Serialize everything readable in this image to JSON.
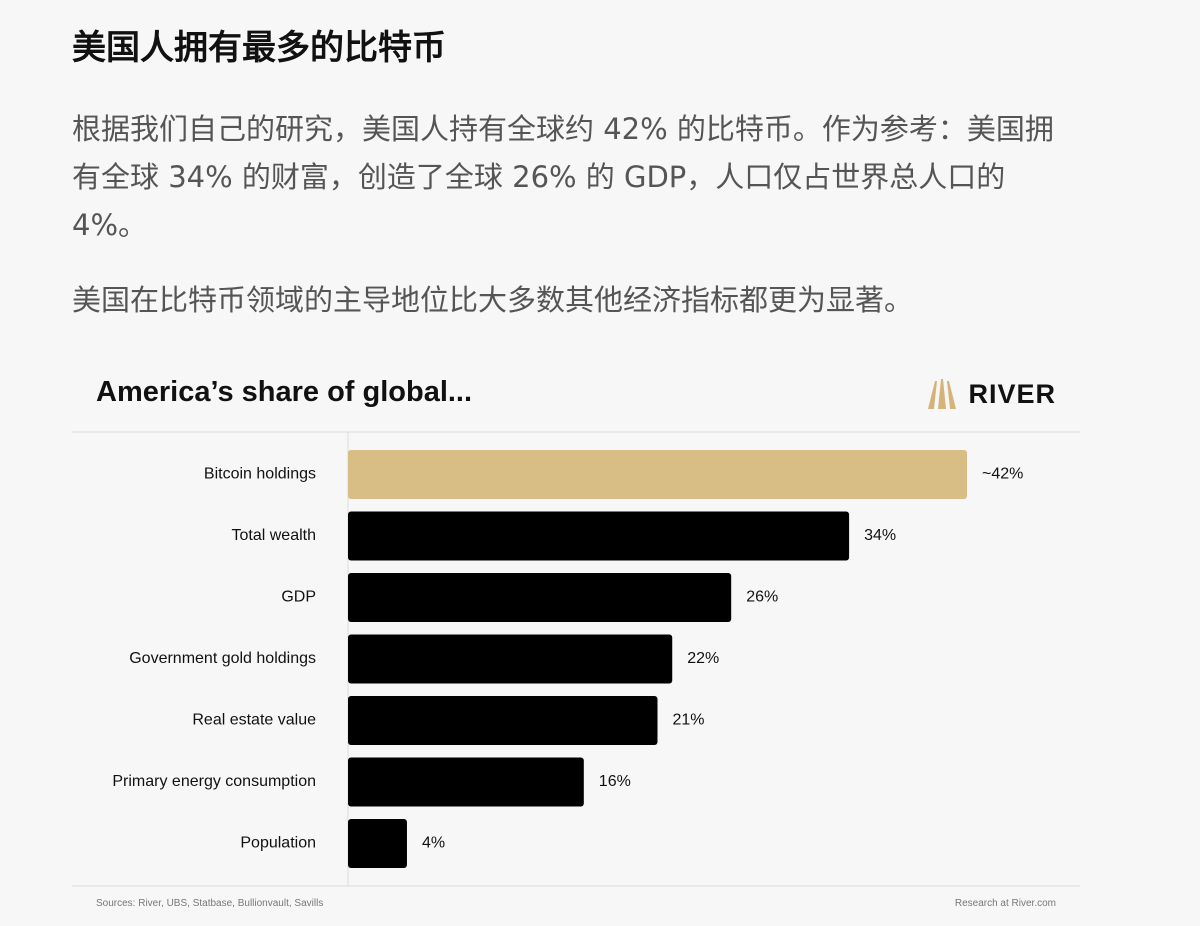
{
  "article": {
    "title": "美国人拥有最多的比特币",
    "paragraph_1": "根据我们自己的研究，美国人持有全球约 42% 的比特币。作为参考：美国拥有全球 34% 的财富，创造了全球 26% 的 GDP，人口仅占世界总人口的 4%。",
    "paragraph_2": "美国在比特币领域的主导地位比大多数其他经济指标都更为显著。"
  },
  "chart": {
    "brand": "RIVER",
    "brand_icon": "river-logo-icon",
    "sources": "Sources: River, UBS, Statbase, Bullionvault, Savills",
    "credit": "Research at River.com"
  },
  "colors": {
    "highlight_bar": "#d8bd84",
    "default_bar": "#000000",
    "brand_gold": "#d4b47a"
  },
  "chart_data": {
    "type": "bar",
    "orientation": "horizontal",
    "title": "America’s share of global...",
    "categories": [
      "Bitcoin holdings",
      "Total wealth",
      "GDP",
      "Government gold holdings",
      "Real estate value",
      "Primary energy consumption",
      "Population"
    ],
    "values": [
      42,
      34,
      26,
      22,
      21,
      16,
      4
    ],
    "data_labels": [
      "~42%",
      "34%",
      "26%",
      "22%",
      "21%",
      "16%",
      "4%"
    ],
    "highlighted_category": "Bitcoin holdings",
    "xlim": [
      0,
      42
    ],
    "unit": "%",
    "grid": false,
    "legend": "none"
  }
}
